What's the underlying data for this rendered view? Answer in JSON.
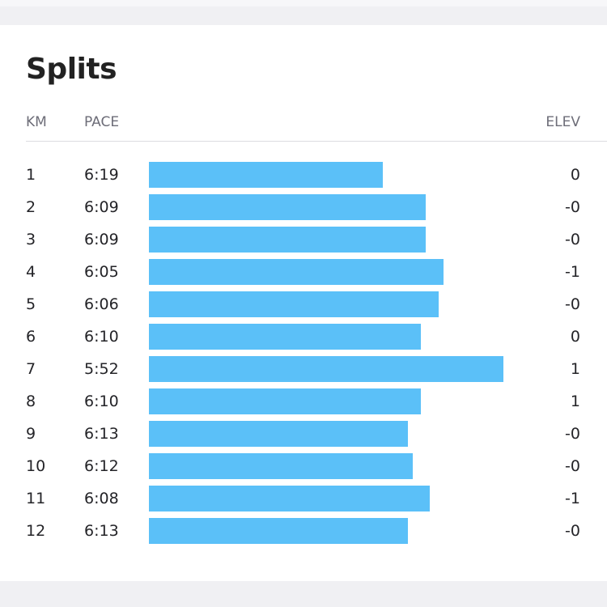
{
  "header": {
    "title": "Splits"
  },
  "table": {
    "columns": [
      "KM",
      "PACE",
      "ELEV"
    ],
    "rows": [
      [
        "1",
        "6:19",
        "0"
      ],
      [
        "2",
        "6:09",
        "-0"
      ],
      [
        "3",
        "6:09",
        "-0"
      ],
      [
        "4",
        "6:05",
        "-1"
      ],
      [
        "5",
        "6:06",
        "-0"
      ],
      [
        "6",
        "6:10",
        "0"
      ],
      [
        "7",
        "5:52",
        "1"
      ],
      [
        "8",
        "6:10",
        "1"
      ],
      [
        "9",
        "6:13",
        "-0"
      ],
      [
        "10",
        "6:12",
        "-0"
      ],
      [
        "11",
        "6:08",
        "-1"
      ],
      [
        "12",
        "6:13",
        "-0"
      ]
    ]
  }
}
